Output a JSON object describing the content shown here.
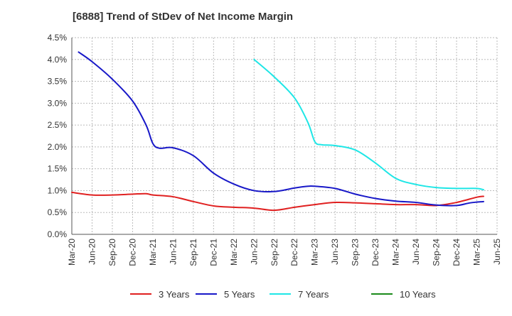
{
  "chart_data": {
    "type": "line",
    "title": "[6888]  Trend of StDev of Net Income Margin",
    "xlabel": "",
    "ylabel": "",
    "x_ticks": [
      "Mar-20",
      "Jun-20",
      "Sep-20",
      "Dec-20",
      "Mar-21",
      "Jun-21",
      "Sep-21",
      "Dec-21",
      "Mar-22",
      "Jun-22",
      "Sep-22",
      "Dec-22",
      "Mar-23",
      "Jun-23",
      "Sep-23",
      "Dec-23",
      "Mar-24",
      "Jun-24",
      "Sep-24",
      "Dec-24",
      "Mar-25",
      "Jun-25"
    ],
    "y_ticks": [
      "0.0%",
      "0.5%",
      "1.0%",
      "1.5%",
      "2.0%",
      "2.5%",
      "3.0%",
      "3.5%",
      "4.0%",
      "4.5%"
    ],
    "ylim": [
      0,
      4.5
    ],
    "y_unit": "%",
    "grid": true,
    "legend_position": "bottom",
    "series": [
      {
        "name": "3 Years",
        "color": "#e02020",
        "points": [
          [
            "Mar-20",
            0.96
          ],
          [
            "Jun-20",
            0.9
          ],
          [
            "Sep-20",
            0.9
          ],
          [
            "Dec-20",
            0.92
          ],
          [
            "Feb-21",
            0.93
          ],
          [
            "Mar-21",
            0.9
          ],
          [
            "Jun-21",
            0.86
          ],
          [
            "Sep-21",
            0.75
          ],
          [
            "Dec-21",
            0.65
          ],
          [
            "Mar-22",
            0.62
          ],
          [
            "Jun-22",
            0.6
          ],
          [
            "Sep-22",
            0.55
          ],
          [
            "Dec-22",
            0.62
          ],
          [
            "Mar-23",
            0.68
          ],
          [
            "Jun-23",
            0.73
          ],
          [
            "Sep-23",
            0.72
          ],
          [
            "Dec-23",
            0.7
          ],
          [
            "Mar-24",
            0.68
          ],
          [
            "Jun-24",
            0.68
          ],
          [
            "Sep-24",
            0.66
          ],
          [
            "Dec-24",
            0.73
          ],
          [
            "Mar-25",
            0.85
          ],
          [
            "Apr-25",
            0.87
          ]
        ]
      },
      {
        "name": "5 Years",
        "color": "#1818c8",
        "points": [
          [
            "Apr-20",
            4.17
          ],
          [
            "Jun-20",
            3.95
          ],
          [
            "Sep-20",
            3.55
          ],
          [
            "Dec-20",
            3.05
          ],
          [
            "Feb-21",
            2.5
          ],
          [
            "Mar-21",
            2.08
          ],
          [
            "Apr-21",
            1.97
          ],
          [
            "Jun-21",
            1.98
          ],
          [
            "Sep-21",
            1.8
          ],
          [
            "Dec-21",
            1.4
          ],
          [
            "Mar-22",
            1.15
          ],
          [
            "Jun-22",
            1.0
          ],
          [
            "Sep-22",
            0.98
          ],
          [
            "Dec-22",
            1.06
          ],
          [
            "Feb-23",
            1.1
          ],
          [
            "Mar-23",
            1.1
          ],
          [
            "Jun-23",
            1.05
          ],
          [
            "Sep-23",
            0.92
          ],
          [
            "Dec-23",
            0.82
          ],
          [
            "Mar-24",
            0.76
          ],
          [
            "Jun-24",
            0.73
          ],
          [
            "Sep-24",
            0.67
          ],
          [
            "Dec-24",
            0.66
          ],
          [
            "Feb-25",
            0.72
          ],
          [
            "Apr-25",
            0.75
          ]
        ]
      },
      {
        "name": "7 Years",
        "color": "#1ee6e6",
        "points": [
          [
            "Jun-22",
            4.0
          ],
          [
            "Sep-22",
            3.6
          ],
          [
            "Dec-22",
            3.12
          ],
          [
            "Feb-23",
            2.55
          ],
          [
            "Mar-23",
            2.12
          ],
          [
            "Apr-23",
            2.05
          ],
          [
            "Jun-23",
            2.03
          ],
          [
            "Sep-23",
            1.93
          ],
          [
            "Dec-23",
            1.63
          ],
          [
            "Mar-24",
            1.28
          ],
          [
            "Jun-24",
            1.14
          ],
          [
            "Sep-24",
            1.07
          ],
          [
            "Dec-24",
            1.05
          ],
          [
            "Mar-25",
            1.05
          ],
          [
            "Apr-25",
            1.02
          ]
        ]
      },
      {
        "name": "10 Years",
        "color": "#1a8a1a",
        "points": []
      }
    ]
  }
}
